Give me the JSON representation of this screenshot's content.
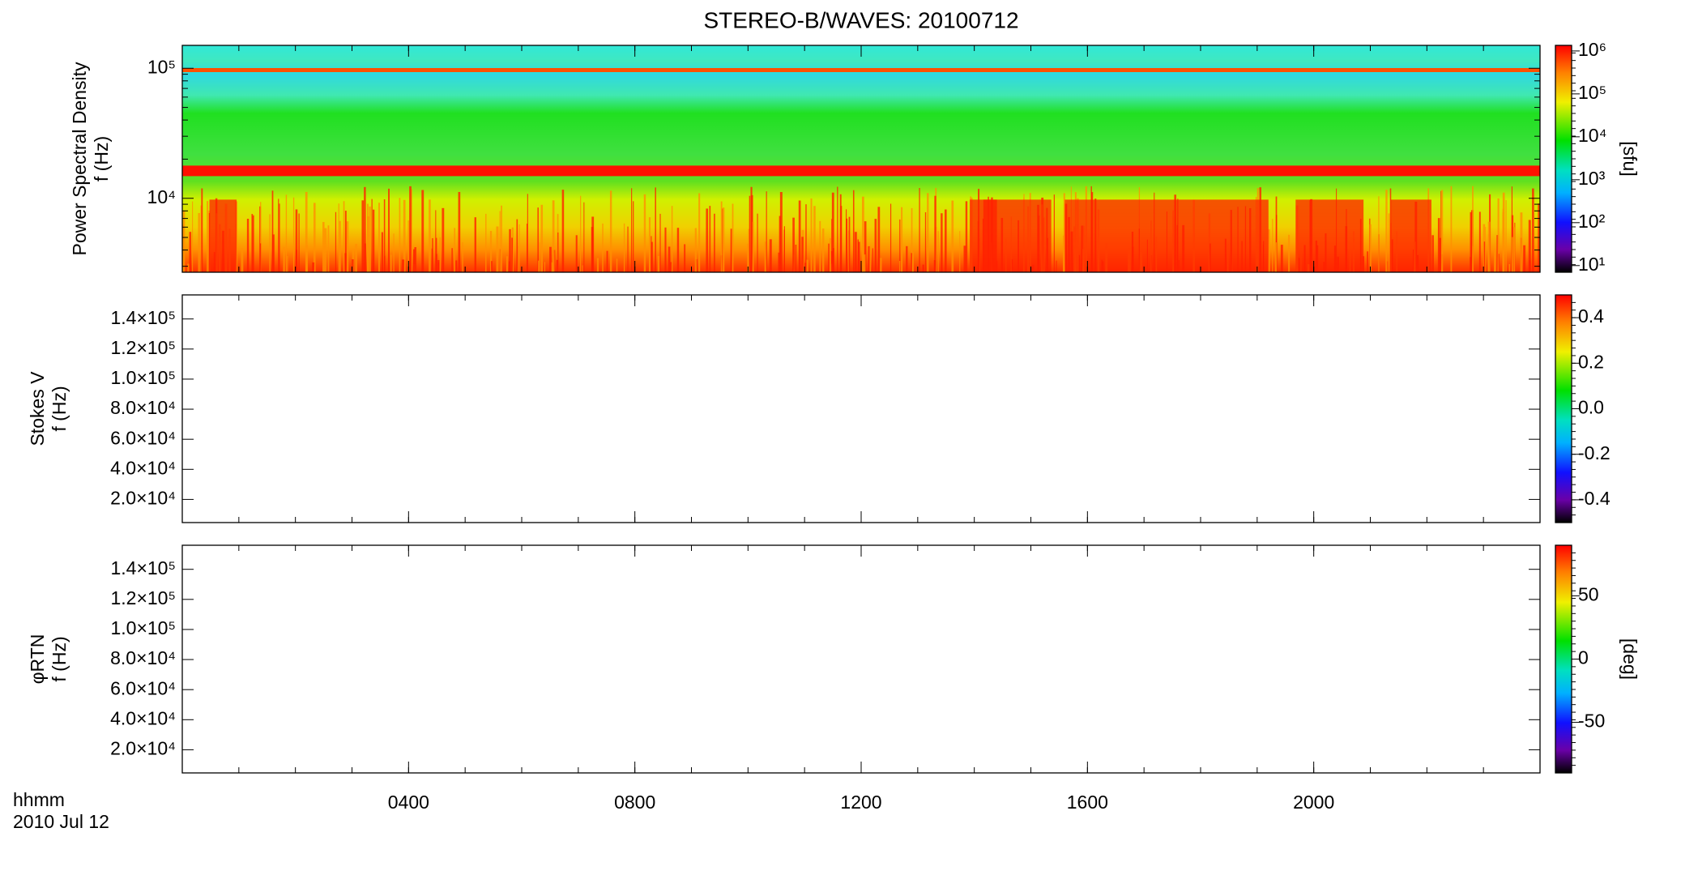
{
  "chart_data": {
    "type": "spectrogram",
    "title": "STEREO-B/WAVES: 20100712",
    "xlabel": [
      "hhmm",
      "2010 Jul 12"
    ],
    "xlim": [
      0,
      24
    ],
    "xticks": [
      {
        "value": 4,
        "label": "0400"
      },
      {
        "value": 8,
        "label": "0800"
      },
      {
        "value": 12,
        "label": "1200"
      },
      {
        "value": 16,
        "label": "1600"
      },
      {
        "value": 20,
        "label": "2000"
      }
    ],
    "panels": [
      {
        "ylabel": [
          "Power Spectral Density",
          "f (Hz)"
        ],
        "yscale": "log",
        "ylim": [
          2700,
          150000
        ],
        "yticks": [
          {
            "value": 10000,
            "label": "10⁴"
          },
          {
            "value": 100000,
            "label": "10⁵"
          }
        ],
        "colorbar": {
          "scale": "log",
          "lim": [
            7,
            1350000
          ],
          "label": "[sfu]",
          "ticks": [
            {
              "value": 10,
              "label": "10¹"
            },
            {
              "value": 100,
              "label": "10²"
            },
            {
              "value": 1000,
              "label": "10³"
            },
            {
              "value": 10000,
              "label": "10⁴"
            },
            {
              "value": 100000,
              "label": "10⁵"
            },
            {
              "value": 1000000,
              "label": "10⁶"
            }
          ]
        }
      },
      {
        "ylabel": [
          "Stokes V",
          "f (Hz)"
        ],
        "yscale": "linear",
        "ylim": [
          4600,
          156000
        ],
        "yticks": [
          {
            "value": 20000,
            "label": "2.0×10⁴"
          },
          {
            "value": 40000,
            "label": "4.0×10⁴"
          },
          {
            "value": 60000,
            "label": "6.0×10⁴"
          },
          {
            "value": 80000,
            "label": "8.0×10⁴"
          },
          {
            "value": 100000,
            "label": "1.0×10⁵"
          },
          {
            "value": 120000,
            "label": "1.2×10⁵"
          },
          {
            "value": 140000,
            "label": "1.4×10⁵"
          }
        ],
        "colorbar": {
          "scale": "linear",
          "lim": [
            -0.5,
            0.5
          ],
          "ticks": [
            -0.4,
            -0.2,
            {
              "value": 0,
              "label": "0.0"
            },
            0.2,
            0.4
          ]
        }
      },
      {
        "ylabel": [
          "φRTN",
          "f (Hz)"
        ],
        "yscale": "linear",
        "ylim": [
          4600,
          156000
        ],
        "yticks": [
          {
            "value": 20000,
            "label": "2.0×10⁴"
          },
          {
            "value": 40000,
            "label": "4.0×10⁴"
          },
          {
            "value": 60000,
            "label": "6.0×10⁴"
          },
          {
            "value": 80000,
            "label": "8.0×10⁴"
          },
          {
            "value": 100000,
            "label": "1.0×10⁵"
          },
          {
            "value": 120000,
            "label": "1.2×10⁵"
          },
          {
            "value": 140000,
            "label": "1.4×10⁵"
          }
        ],
        "colorbar": {
          "scale": "linear",
          "lim": [
            -90,
            90
          ],
          "label": "[deg]",
          "ticks": [
            -50,
            0,
            50
          ]
        }
      }
    ]
  }
}
